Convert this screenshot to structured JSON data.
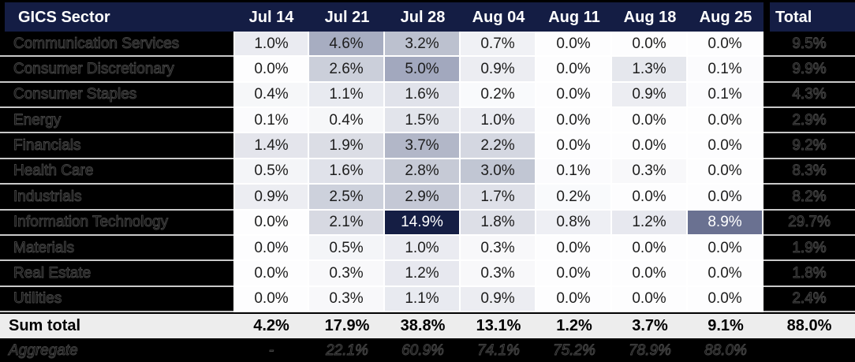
{
  "chart_data": {
    "type": "heatmap",
    "row_header": "GICS Sector",
    "columns": [
      "Jul 14",
      "Jul 21",
      "Jul 28",
      "Aug 04",
      "Aug 11",
      "Aug 18",
      "Aug 25"
    ],
    "total_label": "Total",
    "value_format": "percent_1dp",
    "rows": [
      {
        "sector": "Communication Services",
        "values": [
          1.0,
          4.6,
          3.2,
          0.7,
          0.0,
          0.0,
          0.0
        ],
        "total": 9.5
      },
      {
        "sector": "Consumer Discretionary",
        "values": [
          0.0,
          2.6,
          5.0,
          0.9,
          0.0,
          1.3,
          0.1
        ],
        "total": 9.9
      },
      {
        "sector": "Consumer Staples",
        "values": [
          0.4,
          1.1,
          1.6,
          0.2,
          0.0,
          0.9,
          0.1
        ],
        "total": 4.3
      },
      {
        "sector": "Energy",
        "values": [
          0.1,
          0.4,
          1.5,
          1.0,
          0.0,
          0.0,
          0.0
        ],
        "total": 2.9
      },
      {
        "sector": "Financials",
        "values": [
          1.4,
          1.9,
          3.7,
          2.2,
          0.0,
          0.0,
          0.0
        ],
        "total": 9.2
      },
      {
        "sector": "Health Care",
        "values": [
          0.5,
          1.6,
          2.8,
          3.0,
          0.1,
          0.3,
          0.0
        ],
        "total": 8.3
      },
      {
        "sector": "Industrials",
        "values": [
          0.9,
          2.5,
          2.9,
          1.7,
          0.2,
          0.0,
          0.0
        ],
        "total": 8.2
      },
      {
        "sector": "Information Technology",
        "values": [
          0.0,
          2.1,
          14.9,
          1.8,
          0.8,
          1.2,
          8.9
        ],
        "total": 29.7
      },
      {
        "sector": "Materials",
        "values": [
          0.0,
          0.5,
          1.0,
          0.3,
          0.0,
          0.0,
          0.0
        ],
        "total": 1.9
      },
      {
        "sector": "Real Estate",
        "values": [
          0.0,
          0.3,
          1.2,
          0.3,
          0.0,
          0.0,
          0.0
        ],
        "total": 1.8
      },
      {
        "sector": "Utilities",
        "values": [
          0.0,
          0.3,
          1.1,
          0.9,
          0.0,
          0.0,
          0.0
        ],
        "total": 2.4
      }
    ],
    "sum_total": {
      "label": "Sum total",
      "values": [
        4.2,
        17.9,
        38.8,
        13.1,
        1.2,
        3.7,
        9.1
      ],
      "total": 88.0
    },
    "aggregate": {
      "label": "Aggregate",
      "values": [
        null,
        22.1,
        60.9,
        74.1,
        75.2,
        78.9,
        88.0
      ],
      "total": null
    },
    "aggregate_placeholder": "-",
    "color_scale": {
      "white_text_threshold": 8,
      "anchors": [
        [
          0.0,
          "#fdfdfe"
        ],
        [
          0.5,
          "#f4f5f8"
        ],
        [
          1.0,
          "#eaebf1"
        ],
        [
          1.5,
          "#e2e4eb"
        ],
        [
          2.0,
          "#d9dbe4"
        ],
        [
          2.6,
          "#cbcfda"
        ],
        [
          3.2,
          "#bcc1cf"
        ],
        [
          3.7,
          "#b2b7c8"
        ],
        [
          5.0,
          "#a2a8be"
        ],
        [
          8.9,
          "#6a7191"
        ],
        [
          14.9,
          "#151e44"
        ]
      ]
    }
  },
  "colors": {
    "header_bg": "#141d44",
    "header_text": "#ffffff",
    "label_bg": "#000000",
    "ghost_text": "#0b0b0b",
    "ghost_stroke": "#454545",
    "sum_bg": "#ededed",
    "cell_text": "#1d1d1d",
    "cell_text_light": "#ffffff",
    "separator": "#ffffff",
    "label_separator": "#c9c9c9"
  }
}
